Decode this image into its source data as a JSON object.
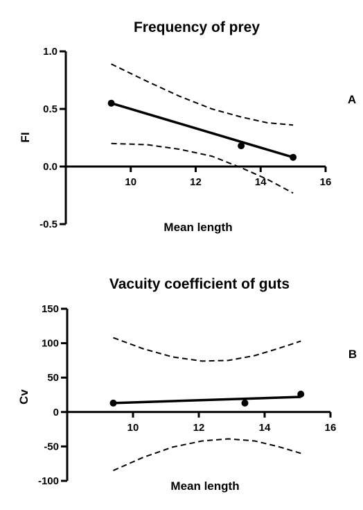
{
  "chart_data": [
    {
      "type": "scatter",
      "panel_label": "A",
      "title": "Frequency of prey",
      "xlabel": "Mean length",
      "ylabel": "FI",
      "xlim": [
        8,
        16
      ],
      "ylim": [
        -0.5,
        1.0
      ],
      "xticks": [
        10,
        12,
        14,
        16
      ],
      "xtick_labels": [
        "10",
        "12",
        "14",
        "16"
      ],
      "yticks": [
        -0.5,
        0.0,
        0.5,
        1.0
      ],
      "ytick_labels": [
        "-0.5",
        "0.0",
        "0.5",
        "1.0"
      ],
      "points": {
        "x": [
          9.4,
          13.4,
          15.0
        ],
        "y": [
          0.55,
          0.18,
          0.08
        ]
      },
      "fit": {
        "x": [
          9.4,
          15.0
        ],
        "y": [
          0.55,
          0.08
        ]
      },
      "band_upper": {
        "x": [
          9.4,
          10.5,
          11.5,
          12.5,
          13.4,
          14.2,
          15.0
        ],
        "y": [
          0.89,
          0.74,
          0.61,
          0.5,
          0.43,
          0.38,
          0.36
        ]
      },
      "band_lower": {
        "x": [
          9.4,
          10.5,
          11.5,
          12.5,
          13.4,
          14.2,
          15.0
        ],
        "y": [
          0.2,
          0.19,
          0.15,
          0.09,
          -0.01,
          -0.11,
          -0.23
        ]
      },
      "grid": false
    },
    {
      "type": "scatter",
      "panel_label": "B",
      "title": "Vacuity coefficient of guts",
      "xlabel": "Mean length",
      "ylabel": "Cv",
      "xlim": [
        8,
        16
      ],
      "ylim": [
        -100,
        150
      ],
      "xticks": [
        10,
        12,
        14,
        16
      ],
      "xtick_labels": [
        "10",
        "12",
        "14",
        "16"
      ],
      "yticks": [
        -100,
        -50,
        0,
        50,
        100,
        150
      ],
      "ytick_labels": [
        "-100",
        "-50",
        "0",
        "50",
        "100",
        "150"
      ],
      "points": {
        "x": [
          9.4,
          13.4,
          15.1
        ],
        "y": [
          13,
          13,
          26
        ]
      },
      "fit": {
        "x": [
          9.4,
          15.1
        ],
        "y": [
          13,
          22
        ]
      },
      "band_upper": {
        "x": [
          9.4,
          10.3,
          11.2,
          12.1,
          12.9,
          13.7,
          14.4,
          15.1
        ],
        "y": [
          108,
          92,
          80,
          74,
          75,
          82,
          92,
          103
        ]
      },
      "band_lower": {
        "x": [
          9.4,
          10.3,
          11.2,
          12.1,
          12.9,
          13.7,
          14.4,
          15.1
        ],
        "y": [
          -85,
          -66,
          -51,
          -42,
          -39,
          -42,
          -50,
          -60
        ]
      },
      "grid": false
    }
  ]
}
